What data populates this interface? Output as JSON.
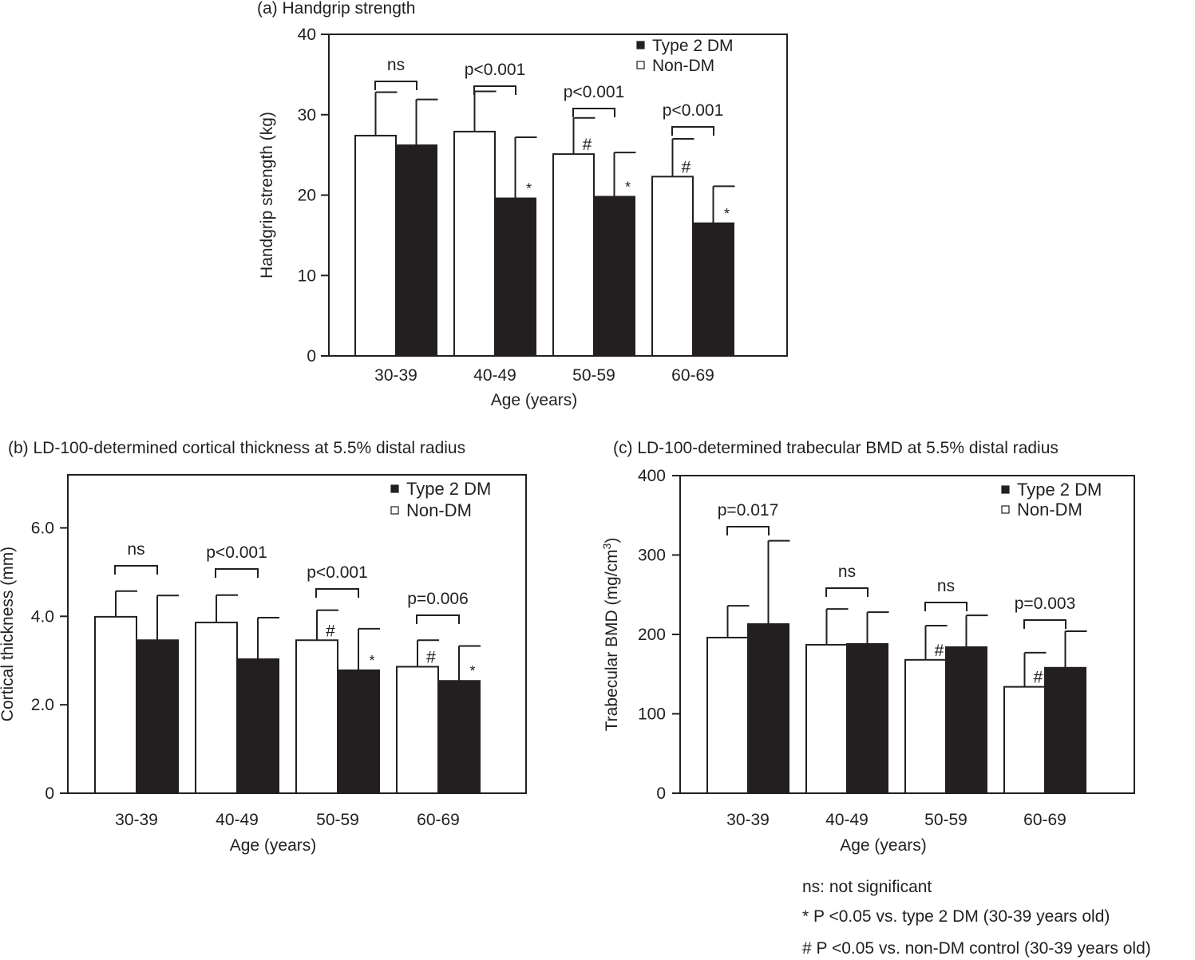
{
  "colors": {
    "ink": "#231f20",
    "dm_fill": "#231f20",
    "non_dm_fill": "#ffffff"
  },
  "chart_data": [
    {
      "id": "a",
      "type": "bar",
      "title": "(a) Handgrip strength",
      "xlabel": "Age (years)",
      "ylabel": "Handgrip strength (kg)",
      "ylim": [
        0,
        40
      ],
      "yticks": [
        "0",
        "10",
        "20",
        "30",
        "40"
      ],
      "ytick_values": [
        0,
        10,
        20,
        30,
        40
      ],
      "categories": [
        "30-39",
        "40-49",
        "50-59",
        "60-69"
      ],
      "legend": {
        "position": "top-right",
        "entries": [
          "Type 2 DM",
          "Non-DM"
        ]
      },
      "grid": false,
      "series": [
        {
          "name": "Non-DM",
          "color": "#ffffff",
          "values": [
            27.4,
            27.9,
            25.1,
            22.3
          ],
          "errors": [
            5.4,
            5.0,
            4.5,
            4.7
          ],
          "marks": [
            "",
            "",
            "#",
            "#"
          ]
        },
        {
          "name": "Type 2 DM",
          "color": "#231f20",
          "values": [
            26.2,
            19.6,
            19.8,
            16.5
          ],
          "errors": [
            5.7,
            7.6,
            5.5,
            4.6
          ],
          "marks": [
            "",
            "*",
            "*",
            "*"
          ]
        }
      ],
      "comparisons": [
        "ns",
        "p<0.001",
        "p<0.001",
        "p<0.001"
      ]
    },
    {
      "id": "b",
      "type": "bar",
      "title": "(b) LD-100-determined cortical thickness at 5.5% distal radius",
      "xlabel": "Age (years)",
      "ylabel": "Cortical thickness (mm)",
      "ylim": [
        0,
        7.2
      ],
      "yticks": [
        "0",
        "2.0",
        "4.0",
        "6.0"
      ],
      "ytick_values": [
        0,
        2,
        4,
        6
      ],
      "categories": [
        "30-39",
        "40-49",
        "50-59",
        "60-69"
      ],
      "legend": {
        "position": "top-right",
        "entries": [
          "Type 2 DM",
          "Non-DM"
        ]
      },
      "grid": false,
      "series": [
        {
          "name": "Non-DM",
          "color": "#ffffff",
          "values": [
            3.99,
            3.86,
            3.46,
            2.86
          ],
          "errors": [
            0.58,
            0.62,
            0.68,
            0.6
          ],
          "marks": [
            "",
            "",
            "#",
            "#"
          ]
        },
        {
          "name": "Type 2 DM",
          "color": "#231f20",
          "values": [
            3.46,
            3.03,
            2.78,
            2.54
          ],
          "errors": [
            1.01,
            0.94,
            0.94,
            0.79
          ],
          "marks": [
            "",
            "",
            "*",
            "*"
          ]
        }
      ],
      "comparisons": [
        "ns",
        "p<0.001",
        "p<0.001",
        "p=0.006"
      ]
    },
    {
      "id": "c",
      "type": "bar",
      "title": "(c) LD-100-determined trabecular BMD at 5.5% distal radius",
      "xlabel": "Age (years)",
      "ylabel": "Trabecular BMD (mg/cm",
      "ylabel_sup": "3",
      "ylabel_end": ")",
      "ylim": [
        0,
        400
      ],
      "yticks": [
        "0",
        "100",
        "200",
        "300",
        "400"
      ],
      "ytick_values": [
        0,
        100,
        200,
        300,
        400
      ],
      "categories": [
        "30-39",
        "40-49",
        "50-59",
        "60-69"
      ],
      "legend": {
        "position": "top-right",
        "entries": [
          "Type 2 DM",
          "Non-DM"
        ]
      },
      "grid": false,
      "series": [
        {
          "name": "Non-DM",
          "color": "#ffffff",
          "values": [
            196,
            187,
            168,
            134
          ],
          "errors": [
            40,
            45,
            43,
            43
          ],
          "marks": [
            "",
            "",
            "#",
            "#"
          ]
        },
        {
          "name": "Type 2 DM",
          "color": "#231f20",
          "values": [
            213,
            188,
            184,
            158
          ],
          "errors": [
            105,
            40,
            40,
            46
          ],
          "marks": [
            "",
            "",
            "",
            ""
          ]
        }
      ],
      "comparisons": [
        "p=0.017",
        "ns",
        "ns",
        "p=0.003"
      ]
    }
  ],
  "footnotes": {
    "ns": "ns: not significant",
    "star": "* P <0.05 vs. type 2 DM (30-39 years old)",
    "hash": "# P <0.05 vs. non-DM control (30-39 years old)"
  }
}
